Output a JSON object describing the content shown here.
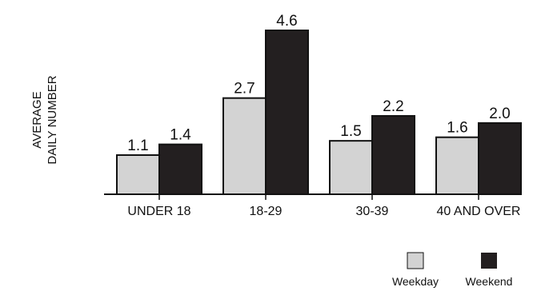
{
  "chart_data": {
    "type": "bar",
    "title": "",
    "xlabel": "",
    "ylabel_lines": [
      "AVERAGE",
      "DAILY NUMBER"
    ],
    "categories": [
      "UNDER 18",
      "18-29",
      "30-39",
      "40 AND OVER"
    ],
    "series": [
      {
        "name": "Weekday",
        "values": [
          1.1,
          2.7,
          1.5,
          1.6
        ],
        "labels": [
          "1.1",
          "2.7",
          "1.5",
          "1.6"
        ],
        "color": "#d3d3d3"
      },
      {
        "name": "Weekend",
        "values": [
          1.4,
          4.6,
          2.2,
          2.0
        ],
        "labels": [
          "1.4",
          "4.6",
          "2.2",
          "2.0"
        ],
        "color": "#231f20"
      }
    ],
    "ylim": [
      0,
      4.6
    ],
    "grid": false,
    "legend_position": "bottom-right"
  }
}
